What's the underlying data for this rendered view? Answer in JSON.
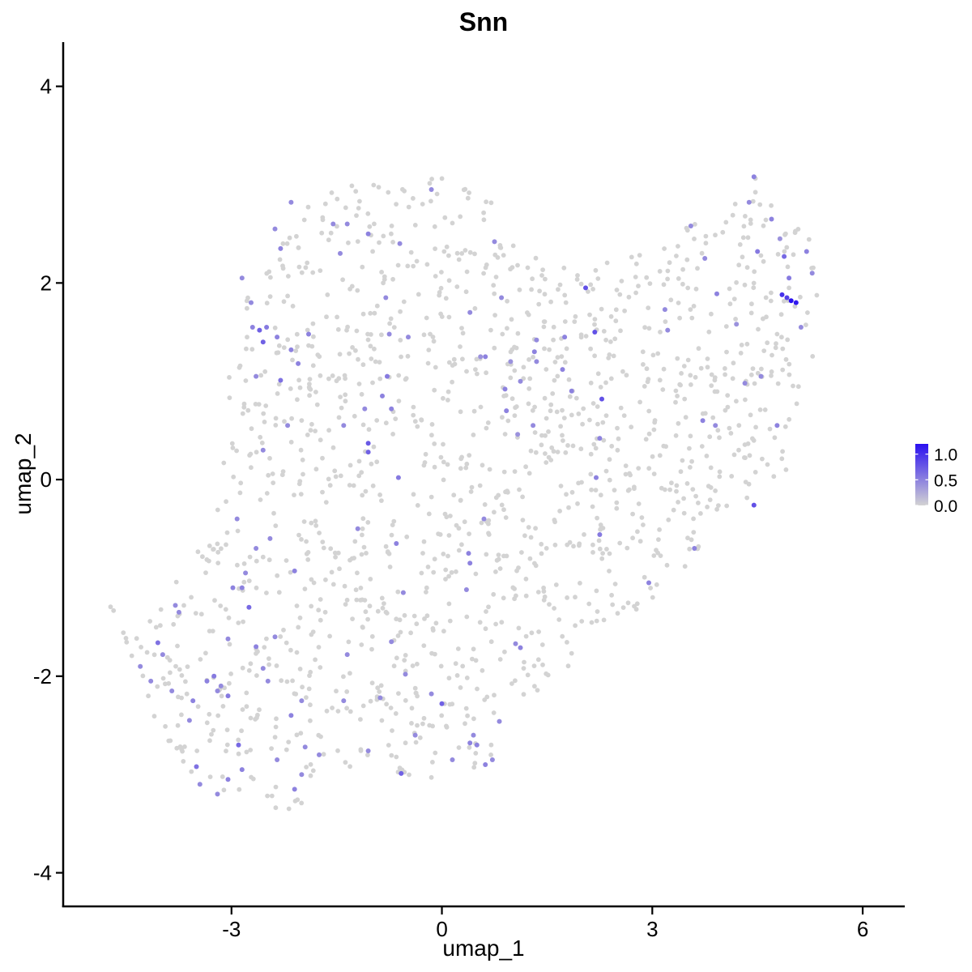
{
  "chart_data": {
    "type": "scatter",
    "title": "Snn",
    "xlabel": "umap_1",
    "ylabel": "umap_2",
    "xlim": [
      -5.4,
      6.6
    ],
    "ylim": [
      -4.35,
      4.45
    ],
    "x_ticks": [
      -3,
      0,
      3,
      6
    ],
    "x_tick_labels": [
      "-3",
      "0",
      "3",
      "6"
    ],
    "y_ticks": [
      -4,
      -2,
      0,
      2,
      4
    ],
    "y_tick_labels": [
      "-4",
      "-2",
      "0",
      "2",
      "4"
    ],
    "grid": false,
    "color_scale": {
      "low_color": "#d3d3d3",
      "high_color": "#2a10f0",
      "range": [
        0,
        1.2
      ],
      "legend_ticks": [
        0.0,
        0.5,
        1.0
      ],
      "legend_tick_labels": [
        "0.0",
        "0.5",
        "1.0"
      ],
      "legend_placement": "right"
    },
    "points_expressing": [
      {
        "x": 4.98,
        "y": 1.82,
        "v": 1.2
      },
      {
        "x": 5.05,
        "y": 1.8,
        "v": 1.15
      },
      {
        "x": 4.85,
        "y": 1.88,
        "v": 1.0
      },
      {
        "x": 4.92,
        "y": 1.85,
        "v": 0.9
      },
      {
        "x": 4.88,
        "y": 2.27,
        "v": 0.65
      },
      {
        "x": 4.95,
        "y": 2.05,
        "v": 0.55
      },
      {
        "x": 5.2,
        "y": 2.32,
        "v": 0.5
      },
      {
        "x": 5.28,
        "y": 2.1,
        "v": 0.45
      },
      {
        "x": 5.12,
        "y": 1.55,
        "v": 0.45
      },
      {
        "x": 4.7,
        "y": 2.65,
        "v": 0.5
      },
      {
        "x": 4.5,
        "y": 2.32,
        "v": 0.55
      },
      {
        "x": 4.45,
        "y": 3.08,
        "v": 0.5
      },
      {
        "x": 4.38,
        "y": 2.82,
        "v": 0.45
      },
      {
        "x": 4.82,
        "y": 2.45,
        "v": 0.4
      },
      {
        "x": 4.45,
        "y": -0.26,
        "v": 0.8
      },
      {
        "x": 4.78,
        "y": 0.55,
        "v": 0.5
      },
      {
        "x": 4.55,
        "y": 1.05,
        "v": 0.45
      },
      {
        "x": 4.32,
        "y": 0.98,
        "v": 0.45
      },
      {
        "x": 4.2,
        "y": 1.58,
        "v": 0.4
      },
      {
        "x": 3.92,
        "y": 1.89,
        "v": 0.5
      },
      {
        "x": 3.75,
        "y": 2.25,
        "v": 0.45
      },
      {
        "x": 3.55,
        "y": 2.58,
        "v": 0.45
      },
      {
        "x": 3.18,
        "y": 1.73,
        "v": 0.45
      },
      {
        "x": 3.22,
        "y": 1.52,
        "v": 0.45
      },
      {
        "x": 3.72,
        "y": 0.6,
        "v": 0.5
      },
      {
        "x": 3.9,
        "y": 0.55,
        "v": 0.45
      },
      {
        "x": 3.6,
        "y": -0.7,
        "v": 0.5
      },
      {
        "x": 2.95,
        "y": -1.05,
        "v": 0.5
      },
      {
        "x": 2.18,
        "y": 1.5,
        "v": 0.8
      },
      {
        "x": 2.05,
        "y": 1.95,
        "v": 0.8
      },
      {
        "x": 2.28,
        "y": 0.82,
        "v": 0.8
      },
      {
        "x": 2.25,
        "y": 0.42,
        "v": 0.5
      },
      {
        "x": 2.25,
        "y": -0.56,
        "v": 0.55
      },
      {
        "x": 2.2,
        "y": 0.02,
        "v": 0.5
      },
      {
        "x": 1.85,
        "y": 0.9,
        "v": 0.5
      },
      {
        "x": 1.72,
        "y": 1.12,
        "v": 0.5
      },
      {
        "x": 1.75,
        "y": 1.45,
        "v": 0.5
      },
      {
        "x": 1.35,
        "y": 1.42,
        "v": 0.45
      },
      {
        "x": 1.32,
        "y": 1.3,
        "v": 0.5
      },
      {
        "x": 1.35,
        "y": 1.2,
        "v": 0.45
      },
      {
        "x": 1.3,
        "y": 0.55,
        "v": 0.45
      },
      {
        "x": 1.12,
        "y": 1.0,
        "v": 0.45
      },
      {
        "x": 1.08,
        "y": 0.46,
        "v": 0.4
      },
      {
        "x": 0.98,
        "y": 1.2,
        "v": 0.4
      },
      {
        "x": 0.92,
        "y": 0.7,
        "v": 0.5
      },
      {
        "x": 0.9,
        "y": 0.92,
        "v": 0.5
      },
      {
        "x": 0.85,
        "y": 1.85,
        "v": 0.45
      },
      {
        "x": 0.75,
        "y": 2.42,
        "v": 0.45
      },
      {
        "x": 0.62,
        "y": 1.25,
        "v": 0.5
      },
      {
        "x": 0.6,
        "y": -0.4,
        "v": 0.45
      },
      {
        "x": 0.55,
        "y": 1.25,
        "v": 0.4
      },
      {
        "x": 0.4,
        "y": 1.7,
        "v": 0.45
      },
      {
        "x": 0.4,
        "y": -0.85,
        "v": 0.5
      },
      {
        "x": 0.38,
        "y": -0.75,
        "v": 0.5
      },
      {
        "x": 0.35,
        "y": -1.12,
        "v": 0.45
      },
      {
        "x": 1.05,
        "y": -1.67,
        "v": 0.45
      },
      {
        "x": 1.12,
        "y": -1.71,
        "v": 0.5
      },
      {
        "x": 0.82,
        "y": -2.46,
        "v": 0.45
      },
      {
        "x": 0.72,
        "y": -2.85,
        "v": 0.45
      },
      {
        "x": 0.62,
        "y": -2.9,
        "v": 0.5
      },
      {
        "x": 0.5,
        "y": -2.7,
        "v": 0.5
      },
      {
        "x": 0.45,
        "y": -2.6,
        "v": 0.45
      },
      {
        "x": 0.4,
        "y": -2.68,
        "v": 0.5
      },
      {
        "x": 0.15,
        "y": -2.85,
        "v": 0.45
      },
      {
        "x": 0.0,
        "y": -2.28,
        "v": 0.7
      },
      {
        "x": -0.15,
        "y": -2.18,
        "v": 0.45
      },
      {
        "x": -0.38,
        "y": -2.6,
        "v": 0.45
      },
      {
        "x": -0.58,
        "y": -2.99,
        "v": 0.7
      },
      {
        "x": -0.52,
        "y": -1.98,
        "v": 0.45
      },
      {
        "x": -0.72,
        "y": -1.65,
        "v": 0.45
      },
      {
        "x": -0.88,
        "y": -2.22,
        "v": 0.45
      },
      {
        "x": -1.05,
        "y": -2.76,
        "v": 0.45
      },
      {
        "x": -1.35,
        "y": -1.78,
        "v": 0.45
      },
      {
        "x": -1.4,
        "y": -2.25,
        "v": 0.45
      },
      {
        "x": -0.65,
        "y": -0.65,
        "v": 0.5
      },
      {
        "x": -0.55,
        "y": -1.15,
        "v": 0.45
      },
      {
        "x": -0.62,
        "y": 0.02,
        "v": 0.55
      },
      {
        "x": -0.72,
        "y": 0.72,
        "v": 0.5
      },
      {
        "x": -0.78,
        "y": 1.05,
        "v": 0.55
      },
      {
        "x": -0.85,
        "y": 0.85,
        "v": 0.5
      },
      {
        "x": -1.05,
        "y": 0.37,
        "v": 0.75
      },
      {
        "x": -1.05,
        "y": 0.28,
        "v": 0.7
      },
      {
        "x": -1.1,
        "y": 0.72,
        "v": 0.45
      },
      {
        "x": -1.2,
        "y": -0.5,
        "v": 0.45
      },
      {
        "x": -1.05,
        "y": 2.5,
        "v": 0.5
      },
      {
        "x": -0.8,
        "y": 1.85,
        "v": 0.45
      },
      {
        "x": -0.75,
        "y": 1.48,
        "v": 0.45
      },
      {
        "x": -0.48,
        "y": 1.45,
        "v": 0.45
      },
      {
        "x": -0.6,
        "y": 2.4,
        "v": 0.45
      },
      {
        "x": -0.15,
        "y": 2.95,
        "v": 0.45
      },
      {
        "x": -1.35,
        "y": 2.6,
        "v": 0.45
      },
      {
        "x": -1.55,
        "y": 2.6,
        "v": 0.45
      },
      {
        "x": -1.45,
        "y": 2.3,
        "v": 0.45
      },
      {
        "x": -1.4,
        "y": 0.55,
        "v": 0.45
      },
      {
        "x": -1.9,
        "y": 1.48,
        "v": 0.5
      },
      {
        "x": -2.05,
        "y": 1.18,
        "v": 0.5
      },
      {
        "x": -2.15,
        "y": 1.32,
        "v": 0.5
      },
      {
        "x": -2.3,
        "y": 1.01,
        "v": 0.6
      },
      {
        "x": -2.35,
        "y": 1.45,
        "v": 0.5
      },
      {
        "x": -2.5,
        "y": 1.55,
        "v": 0.55
      },
      {
        "x": -2.55,
        "y": 1.4,
        "v": 0.7
      },
      {
        "x": -2.6,
        "y": 1.52,
        "v": 0.7
      },
      {
        "x": -2.72,
        "y": 1.8,
        "v": 0.45
      },
      {
        "x": -2.7,
        "y": 1.55,
        "v": 0.5
      },
      {
        "x": -2.3,
        "y": 2.35,
        "v": 0.5
      },
      {
        "x": -2.15,
        "y": 2.82,
        "v": 0.45
      },
      {
        "x": -2.38,
        "y": 2.55,
        "v": 0.45
      },
      {
        "x": -2.65,
        "y": 1.05,
        "v": 0.45
      },
      {
        "x": -2.2,
        "y": 0.55,
        "v": 0.45
      },
      {
        "x": -2.85,
        "y": 2.05,
        "v": 0.45
      },
      {
        "x": -2.55,
        "y": 0.3,
        "v": 0.45
      },
      {
        "x": -2.92,
        "y": -0.4,
        "v": 0.45
      },
      {
        "x": -2.65,
        "y": -0.7,
        "v": 0.45
      },
      {
        "x": -2.8,
        "y": -0.95,
        "v": 0.45
      },
      {
        "x": -2.85,
        "y": -1.1,
        "v": 0.5
      },
      {
        "x": -2.75,
        "y": -1.3,
        "v": 0.65
      },
      {
        "x": -2.98,
        "y": -1.1,
        "v": 0.5
      },
      {
        "x": -2.65,
        "y": -1.7,
        "v": 0.5
      },
      {
        "x": -2.55,
        "y": -1.92,
        "v": 0.45
      },
      {
        "x": -2.38,
        "y": -1.6,
        "v": 0.45
      },
      {
        "x": -2.45,
        "y": -0.6,
        "v": 0.45
      },
      {
        "x": -2.1,
        "y": -0.93,
        "v": 0.5
      },
      {
        "x": -2.0,
        "y": -2.25,
        "v": 0.45
      },
      {
        "x": -2.15,
        "y": -2.4,
        "v": 0.5
      },
      {
        "x": -3.05,
        "y": -1.62,
        "v": 0.45
      },
      {
        "x": -3.05,
        "y": -2.2,
        "v": 0.55
      },
      {
        "x": -2.9,
        "y": -2.7,
        "v": 0.65
      },
      {
        "x": -2.85,
        "y": -2.95,
        "v": 0.5
      },
      {
        "x": -3.15,
        "y": -2.1,
        "v": 0.45
      },
      {
        "x": -3.25,
        "y": -2.0,
        "v": 0.55
      },
      {
        "x": -3.35,
        "y": -2.05,
        "v": 0.5
      },
      {
        "x": -3.2,
        "y": -2.15,
        "v": 0.45
      },
      {
        "x": -3.55,
        "y": -2.25,
        "v": 0.5
      },
      {
        "x": -3.6,
        "y": -2.45,
        "v": 0.45
      },
      {
        "x": -3.75,
        "y": -1.35,
        "v": 0.45
      },
      {
        "x": -3.8,
        "y": -1.28,
        "v": 0.45
      },
      {
        "x": -3.98,
        "y": -1.78,
        "v": 0.45
      },
      {
        "x": -4.05,
        "y": -1.66,
        "v": 0.6
      },
      {
        "x": -4.3,
        "y": -1.9,
        "v": 0.45
      },
      {
        "x": -4.15,
        "y": -2.05,
        "v": 0.45
      },
      {
        "x": -3.85,
        "y": -2.15,
        "v": 0.45
      },
      {
        "x": -3.2,
        "y": -3.2,
        "v": 0.45
      },
      {
        "x": -3.05,
        "y": -3.05,
        "v": 0.5
      },
      {
        "x": -3.45,
        "y": -3.1,
        "v": 0.45
      },
      {
        "x": -3.5,
        "y": -2.92,
        "v": 0.6
      },
      {
        "x": -2.35,
        "y": -2.85,
        "v": 0.45
      },
      {
        "x": -2.1,
        "y": -3.15,
        "v": 0.5
      },
      {
        "x": -2.0,
        "y": -3.0,
        "v": 0.45
      },
      {
        "x": -2.48,
        "y": -2.05,
        "v": 0.45
      },
      {
        "x": -1.75,
        "y": -2.8,
        "v": 0.45
      },
      {
        "x": -1.95,
        "y": -2.72,
        "v": 0.45
      }
    ]
  }
}
